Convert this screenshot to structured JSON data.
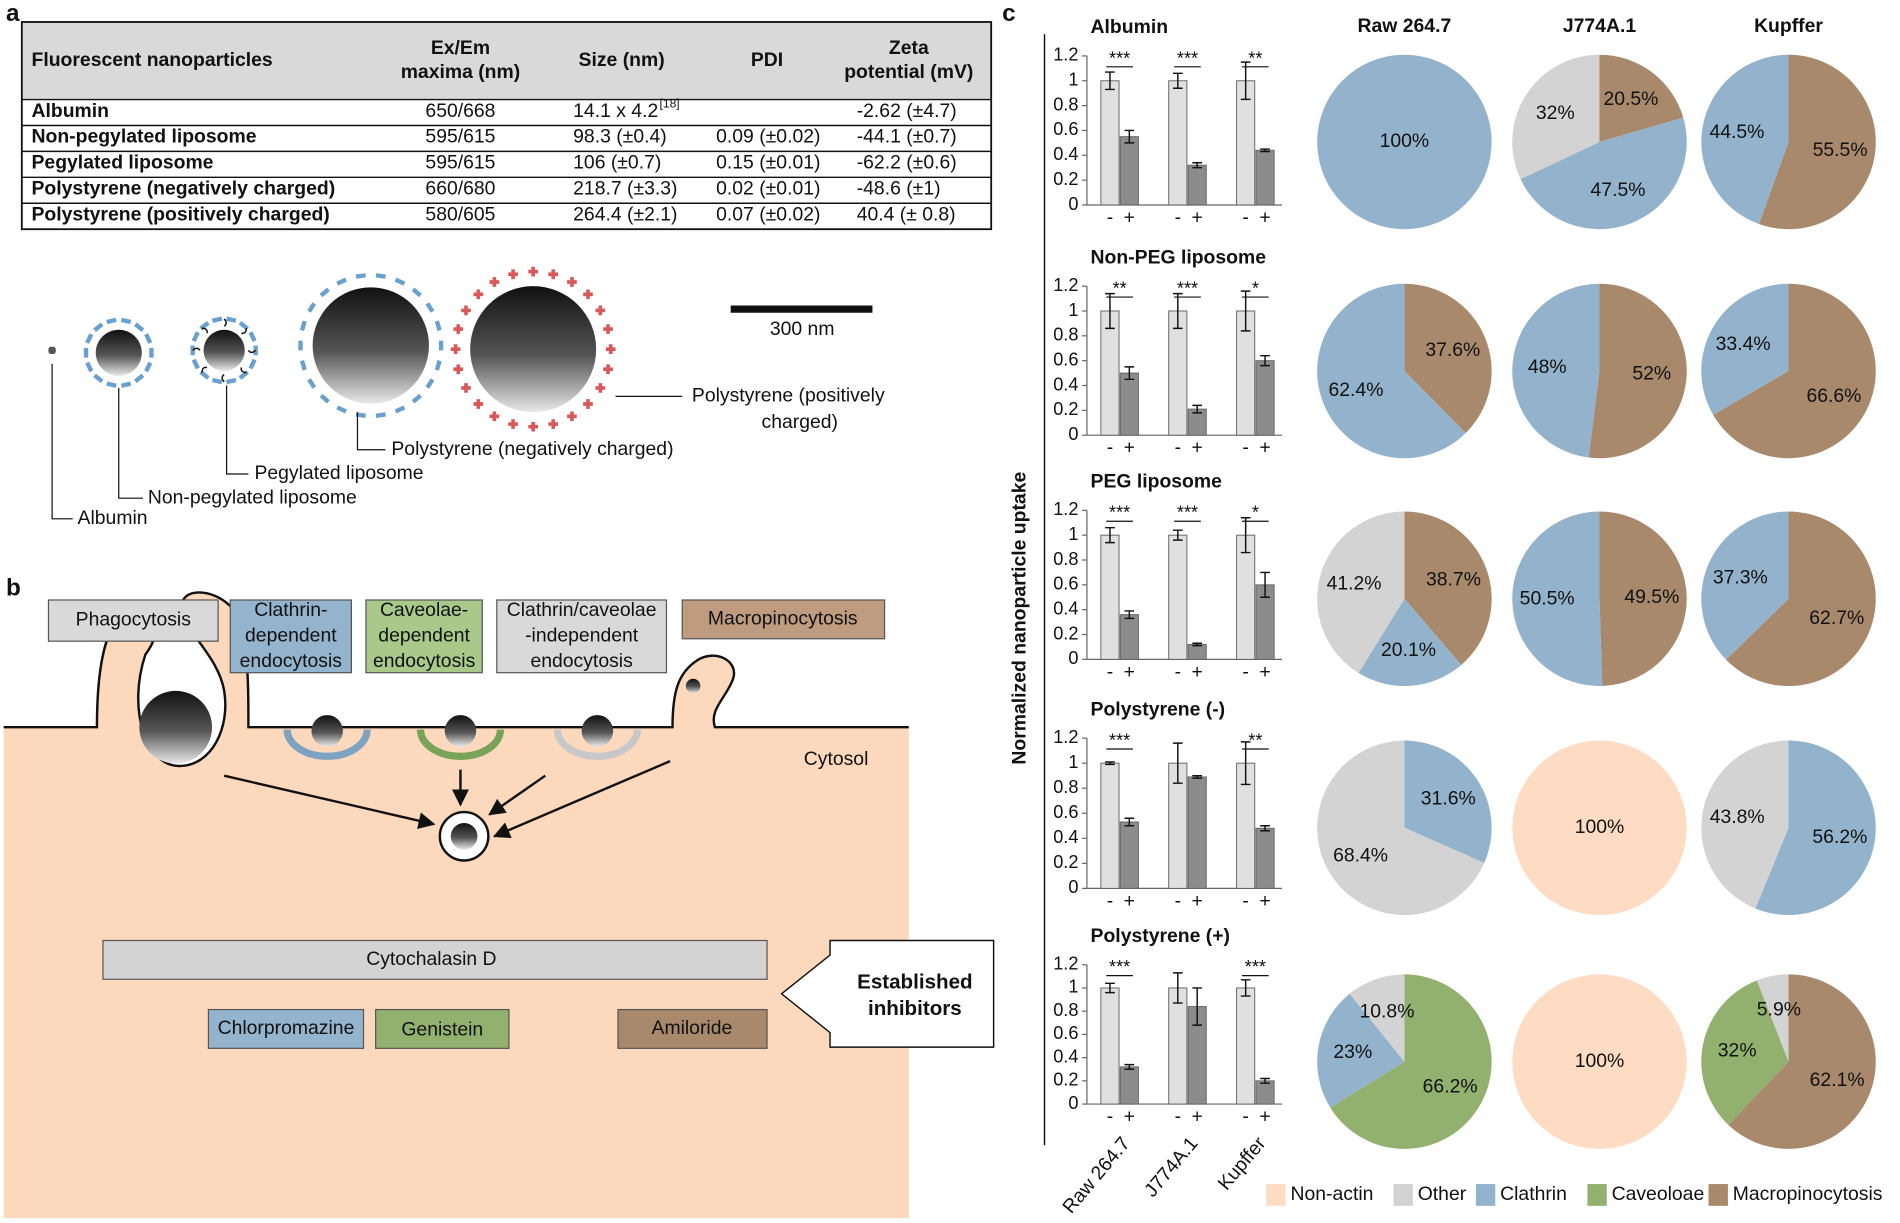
{
  "panel_labels": [
    "a",
    "b",
    "c"
  ],
  "table": {
    "header": [
      [
        "Fluorescent nanoparticles"
      ],
      [
        "Ex/Em",
        "maxima (nm)"
      ],
      [
        "Size (nm)"
      ],
      [
        "PDI"
      ],
      [
        "Zeta",
        "potential (mV)"
      ]
    ],
    "rows": [
      [
        "Albumin",
        "650/668",
        {
          "text": "14.1 x 4.2",
          "ref": "[18]"
        },
        null,
        "-2.62 (±4.7)"
      ],
      [
        "Non-pegylated liposome",
        "595/615",
        "98.3 (±0.4)",
        "0.09 (±0.02)",
        "-44.1 (±0.7)"
      ],
      [
        "Pegylated liposome",
        "595/615",
        "106 (±0.7)",
        "0.15 (±0.01)",
        "-62.2 (±0.6)"
      ],
      [
        "Polystyrene (negatively charged)",
        "660/680",
        "218.7 (±3.3)",
        "0.02 (±0.01)",
        "-48.6 (±1)"
      ],
      [
        "Polystyrene (positively charged)",
        "580/605",
        "264.4 (±2.1)",
        "0.07 (±0.02)",
        "40.4 (± 0.8)"
      ]
    ]
  },
  "particle_diagram": {
    "scale_bar": "300 nm",
    "labels": [
      [
        "Albumin"
      ],
      [
        "Non-pegylated liposome"
      ],
      [
        "Pegylated liposome"
      ],
      [
        "Polystyrene (negatively charged)"
      ],
      [
        "Polystyrene (positively",
        "charged)"
      ]
    ]
  },
  "pathway_diagram": {
    "routes": [
      [
        "Phagocytosis"
      ],
      [
        "Clathrin-",
        "dependent",
        "endocytosis"
      ],
      [
        "Caveolae-",
        "dependent",
        "endocytosis"
      ],
      [
        "Clathrin/caveolae",
        "-independent",
        "endocytosis"
      ],
      [
        "Macropinocytosis"
      ]
    ],
    "compartment": "Cytosol",
    "inhibitors": [
      "Cytochalasin D",
      "Chlorpromazine",
      "Genistein",
      "Amiloride"
    ],
    "inhibitor_label": [
      "Established",
      "inhibitors"
    ]
  },
  "panel_c": {
    "y_label": "Normalized nanoparticle uptake",
    "cell_lines": [
      "Raw 264.7",
      "J774A.1",
      "Kupffer"
    ],
    "pie_legend": [
      {
        "name": "Non-actin",
        "color": "#fddcc3"
      },
      {
        "name": "Other",
        "color": "#d3d3d3"
      },
      {
        "name": "Clathrin",
        "color": "#93b3cc"
      },
      {
        "name": "Caveoloae",
        "color": "#93b16e"
      },
      {
        "name": "Macropinocytosis",
        "color": "#a8896c"
      }
    ]
  },
  "chart_data": [
    {
      "type": "bar",
      "title": "Albumin",
      "ylim": [
        0,
        1.2
      ],
      "yticks": [
        0,
        0.2,
        0.4,
        0.6,
        0.8,
        1,
        1.2
      ],
      "significance": [
        "***",
        "***",
        "**"
      ],
      "series": [
        {
          "name": "-",
          "color": "#e0e0e0",
          "values": [
            1,
            1,
            1
          ],
          "errors": [
            0.07,
            0.06,
            0.15
          ]
        },
        {
          "name": "+",
          "color": "#8c8c8c",
          "values": [
            0.55,
            0.32,
            0.44
          ],
          "errors": [
            0.05,
            0.02,
            0.01
          ]
        }
      ]
    },
    {
      "type": "bar",
      "title": "Non-PEG liposome",
      "ylim": [
        0,
        1.2
      ],
      "yticks": [
        0,
        0.2,
        0.4,
        0.6,
        0.8,
        1,
        1.2
      ],
      "significance": [
        "**",
        "***",
        "*"
      ],
      "series": [
        {
          "name": "-",
          "color": "#e0e0e0",
          "values": [
            1,
            1,
            1
          ],
          "errors": [
            0.14,
            0.14,
            0.16
          ]
        },
        {
          "name": "+",
          "color": "#8c8c8c",
          "values": [
            0.5,
            0.21,
            0.6
          ],
          "errors": [
            0.05,
            0.03,
            0.04
          ]
        }
      ]
    },
    {
      "type": "bar",
      "title": "PEG liposome",
      "ylim": [
        0,
        1.2
      ],
      "yticks": [
        0,
        0.2,
        0.4,
        0.6,
        0.8,
        1,
        1.2
      ],
      "significance": [
        "***",
        "***",
        "*"
      ],
      "series": [
        {
          "name": "-",
          "color": "#e0e0e0",
          "values": [
            1,
            1,
            1
          ],
          "errors": [
            0.06,
            0.04,
            0.14
          ]
        },
        {
          "name": "+",
          "color": "#8c8c8c",
          "values": [
            0.36,
            0.12,
            0.6
          ],
          "errors": [
            0.03,
            0.01,
            0.1
          ]
        }
      ]
    },
    {
      "type": "bar",
      "title": "Polystyrene (-)",
      "ylim": [
        0,
        1.2
      ],
      "yticks": [
        0,
        0.2,
        0.4,
        0.6,
        0.8,
        1,
        1.2
      ],
      "significance": [
        "***",
        null,
        "**"
      ],
      "series": [
        {
          "name": "-",
          "color": "#e0e0e0",
          "values": [
            1,
            1,
            1
          ],
          "errors": [
            0.01,
            0.16,
            0.17
          ]
        },
        {
          "name": "+",
          "color": "#8c8c8c",
          "values": [
            0.53,
            0.89,
            0.48
          ],
          "errors": [
            0.03,
            0.01,
            0.02
          ]
        }
      ]
    },
    {
      "type": "bar",
      "title": "Polystyrene (+)",
      "ylim": [
        0,
        1.2
      ],
      "yticks": [
        0,
        0.2,
        0.4,
        0.6,
        0.8,
        1,
        1.2
      ],
      "significance": [
        "***",
        null,
        "***"
      ],
      "series": [
        {
          "name": "-",
          "color": "#e0e0e0",
          "values": [
            1,
            1,
            1
          ],
          "errors": [
            0.04,
            0.13,
            0.07
          ]
        },
        {
          "name": "+",
          "color": "#8c8c8c",
          "values": [
            0.32,
            0.84,
            0.2
          ],
          "errors": [
            0.02,
            0.16,
            0.02
          ]
        }
      ]
    },
    {
      "type": "pie",
      "values": [
        null,
        null,
        100,
        null,
        null
      ],
      "value_labels": [
        null,
        null,
        "100%",
        null,
        null
      ]
    },
    {
      "type": "pie",
      "values": [
        null,
        32,
        47.5,
        null,
        20.5
      ],
      "value_labels": [
        null,
        "32%",
        "47.5%",
        null,
        "20.5%"
      ]
    },
    {
      "type": "pie",
      "values": [
        null,
        null,
        44.5,
        null,
        55.5
      ],
      "value_labels": [
        null,
        null,
        "44.5%",
        null,
        "55.5%"
      ]
    },
    {
      "type": "pie",
      "values": [
        null,
        null,
        62.4,
        null,
        37.6
      ],
      "value_labels": [
        null,
        null,
        "62.4%",
        null,
        "37.6%"
      ]
    },
    {
      "type": "pie",
      "values": [
        null,
        null,
        48,
        null,
        52
      ],
      "value_labels": [
        null,
        null,
        "48%",
        null,
        "52%"
      ]
    },
    {
      "type": "pie",
      "values": [
        null,
        null,
        33.4,
        null,
        66.6
      ],
      "value_labels": [
        null,
        null,
        "33.4%",
        null,
        "66.6%"
      ]
    },
    {
      "type": "pie",
      "values": [
        null,
        41.2,
        20.1,
        null,
        38.7
      ],
      "value_labels": [
        null,
        "41.2%",
        "20.1%",
        null,
        "38.7%"
      ]
    },
    {
      "type": "pie",
      "values": [
        null,
        null,
        50.5,
        null,
        49.5
      ],
      "value_labels": [
        null,
        null,
        "50.5%",
        null,
        "49.5%"
      ]
    },
    {
      "type": "pie",
      "values": [
        null,
        null,
        37.3,
        null,
        62.7
      ],
      "value_labels": [
        null,
        null,
        "37.3%",
        null,
        "62.7%"
      ]
    },
    {
      "type": "pie",
      "values": [
        null,
        68.4,
        31.6,
        null,
        null
      ],
      "value_labels": [
        null,
        "68.4%",
        "31.6%",
        null,
        null
      ]
    },
    {
      "type": "pie",
      "values": [
        100,
        null,
        null,
        null,
        null
      ],
      "value_labels": [
        "100%",
        null,
        null,
        null,
        null
      ]
    },
    {
      "type": "pie",
      "values": [
        null,
        43.8,
        56.2,
        null,
        null
      ],
      "value_labels": [
        null,
        "43.8%",
        "56.2%",
        null,
        null
      ]
    },
    {
      "type": "pie",
      "values": [
        null,
        10.8,
        23,
        66.2,
        null
      ],
      "value_labels": [
        null,
        "10.8%",
        "23%",
        "66.2%",
        null
      ]
    },
    {
      "type": "pie",
      "values": [
        100,
        null,
        null,
        null,
        null
      ],
      "value_labels": [
        "100%",
        null,
        null,
        null,
        null
      ]
    },
    {
      "type": "pie",
      "values": [
        null,
        5.9,
        null,
        32,
        62.1
      ],
      "value_labels": [
        null,
        "5.9%",
        null,
        "32%",
        "62.1%"
      ]
    }
  ]
}
